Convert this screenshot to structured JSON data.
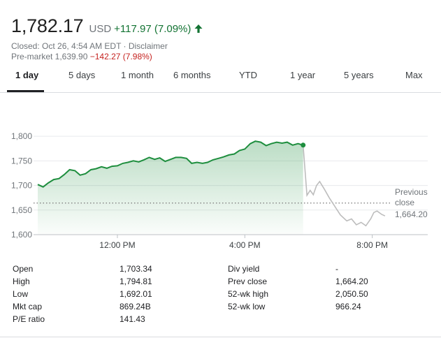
{
  "quote": {
    "price": "1,782.17",
    "currency": "USD",
    "change": "+117.97 (7.09%)",
    "closed_text": "Closed: Oct 26, 4:54 AM EDT · Disclaimer",
    "premarket_label": "Pre-market 1,639.90",
    "premarket_change": "−142.27 (7.98%)",
    "up_color": "#137333",
    "down_color": "#c5221f"
  },
  "tabs": [
    {
      "label": "1 day",
      "active": true
    },
    {
      "label": "5 days"
    },
    {
      "label": "1 month"
    },
    {
      "label": "6 months"
    },
    {
      "label": "YTD"
    },
    {
      "label": "1 year"
    },
    {
      "label": "5 years"
    },
    {
      "label": "Max"
    }
  ],
  "chart_data": {
    "type": "line",
    "y_ticks": [
      "1,800",
      "1,750",
      "1,700",
      "1,650",
      "1,600"
    ],
    "y_tick_values": [
      1800,
      1750,
      1700,
      1650,
      1600
    ],
    "x_ticks": [
      "12:00 PM",
      "4:00 PM",
      "8:00 PM"
    ],
    "x_tick_hours": [
      12,
      16,
      20
    ],
    "ylim": [
      1600,
      1830
    ],
    "xlim_hours": [
      9.5,
      20.6
    ],
    "previous_close": {
      "label_line1": "Previous",
      "label_line2": "close",
      "value_label": "1,664.20",
      "value": 1664.2
    },
    "series": [
      {
        "session": "regular",
        "color": "#1e8e3e",
        "points": [
          [
            9.5,
            1702
          ],
          [
            9.67,
            1697
          ],
          [
            9.83,
            1705
          ],
          [
            10,
            1712
          ],
          [
            10.17,
            1714
          ],
          [
            10.33,
            1722
          ],
          [
            10.5,
            1732
          ],
          [
            10.67,
            1730
          ],
          [
            10.83,
            1721
          ],
          [
            11,
            1724
          ],
          [
            11.17,
            1732
          ],
          [
            11.33,
            1734
          ],
          [
            11.5,
            1738
          ],
          [
            11.67,
            1735
          ],
          [
            11.83,
            1739
          ],
          [
            12,
            1740
          ],
          [
            12.17,
            1745
          ],
          [
            12.33,
            1747
          ],
          [
            12.5,
            1750
          ],
          [
            12.67,
            1748
          ],
          [
            12.83,
            1752
          ],
          [
            13,
            1757
          ],
          [
            13.17,
            1753
          ],
          [
            13.33,
            1756
          ],
          [
            13.5,
            1749
          ],
          [
            13.67,
            1753
          ],
          [
            13.83,
            1757
          ],
          [
            14,
            1757
          ],
          [
            14.17,
            1755
          ],
          [
            14.33,
            1745
          ],
          [
            14.5,
            1747
          ],
          [
            14.67,
            1745
          ],
          [
            14.83,
            1747
          ],
          [
            15,
            1752
          ],
          [
            15.17,
            1755
          ],
          [
            15.33,
            1758
          ],
          [
            15.5,
            1762
          ],
          [
            15.67,
            1764
          ],
          [
            15.83,
            1771
          ],
          [
            16,
            1774
          ],
          [
            16.17,
            1785
          ],
          [
            16.33,
            1790
          ],
          [
            16.5,
            1788
          ],
          [
            16.67,
            1781
          ],
          [
            16.83,
            1785
          ],
          [
            17,
            1788
          ],
          [
            17.17,
            1786
          ],
          [
            17.33,
            1788
          ],
          [
            17.5,
            1782
          ],
          [
            17.67,
            1785
          ],
          [
            17.83,
            1782
          ]
        ]
      },
      {
        "session": "after-hours",
        "color": "#bdbdbd",
        "points": [
          [
            17.83,
            1782
          ],
          [
            17.95,
            1680
          ],
          [
            18.05,
            1690
          ],
          [
            18.15,
            1681
          ],
          [
            18.25,
            1700
          ],
          [
            18.35,
            1708
          ],
          [
            18.5,
            1692
          ],
          [
            18.65,
            1675
          ],
          [
            18.8,
            1660
          ],
          [
            18.9,
            1650
          ],
          [
            19,
            1640
          ],
          [
            19.2,
            1628
          ],
          [
            19.35,
            1632
          ],
          [
            19.5,
            1620
          ],
          [
            19.65,
            1625
          ],
          [
            19.8,
            1618
          ],
          [
            19.95,
            1632
          ],
          [
            20.05,
            1645
          ],
          [
            20.15,
            1648
          ],
          [
            20.3,
            1641
          ],
          [
            20.4,
            1638
          ]
        ]
      }
    ]
  },
  "stats": {
    "left": [
      {
        "label": "Open",
        "value": "1,703.34"
      },
      {
        "label": "High",
        "value": "1,794.81"
      },
      {
        "label": "Low",
        "value": "1,692.01"
      },
      {
        "label": "Mkt cap",
        "value": "869.24B"
      },
      {
        "label": "P/E ratio",
        "value": "141.43"
      }
    ],
    "right": [
      {
        "label": "Div yield",
        "value": "-"
      },
      {
        "label": "Prev close",
        "value": "1,664.20"
      },
      {
        "label": "52-wk high",
        "value": "2,050.50"
      },
      {
        "label": "52-wk low",
        "value": "966.24"
      }
    ]
  }
}
